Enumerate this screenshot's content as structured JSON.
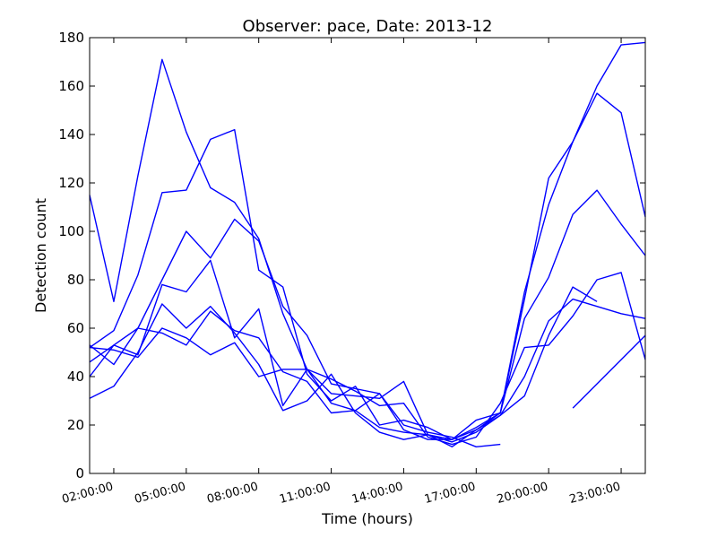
{
  "chart_data": {
    "type": "line",
    "title": "Observer: pace, Date: 2013-12",
    "xlabel": "Time (hours)",
    "ylabel": "Detection count",
    "ylim": [
      0,
      180
    ],
    "xlim": [
      "01:00",
      "24:00"
    ],
    "x_tick_labels": [
      "02:00:00",
      "05:00:00",
      "08:00:00",
      "11:00:00",
      "14:00:00",
      "17:00:00",
      "20:00:00",
      "23:00:00"
    ],
    "y_tick_labels": [
      "0",
      "20",
      "40",
      "60",
      "80",
      "100",
      "120",
      "140",
      "160",
      "180"
    ],
    "grid": false,
    "legend": "none",
    "line_color": "#0000ff",
    "x": [
      "01:00",
      "02:00",
      "03:00",
      "04:00",
      "05:00",
      "06:00",
      "07:00",
      "08:00",
      "09:00",
      "10:00",
      "11:00",
      "12:00",
      "13:00",
      "14:00",
      "15:00",
      "16:00",
      "17:00",
      "18:00",
      "19:00",
      "20:00",
      "21:00",
      "22:00",
      "23:00",
      "24:00"
    ],
    "series": [
      {
        "values": [
          115,
          71,
          123,
          171,
          141,
          118,
          112,
          97,
          66,
          43,
          33,
          32,
          31,
          38,
          16,
          14,
          22,
          25,
          72,
          122,
          137,
          160,
          177,
          178
        ]
      },
      {
        "values": [
          52,
          59,
          82,
          116,
          117,
          138,
          142,
          84,
          77,
          41,
          30,
          36,
          20,
          22,
          19,
          14,
          18,
          25,
          75,
          111,
          137,
          157,
          149,
          106
        ]
      },
      {
        "values": [
          46,
          53,
          60,
          80,
          100,
          89,
          105,
          96,
          69,
          57,
          37,
          35,
          33,
          18,
          14,
          14,
          19,
          25,
          64,
          81,
          107,
          117,
          103,
          90
        ]
      },
      {
        "values": [
          40,
          53,
          49,
          78,
          75,
          88,
          56,
          68,
          28,
          43,
          39,
          34,
          28,
          29,
          15,
          12,
          15,
          29,
          52,
          53,
          65,
          80,
          83,
          47
        ]
      },
      {
        "values": [
          31,
          36,
          50,
          70,
          60,
          69,
          58,
          45,
          26,
          30,
          41,
          25,
          17,
          14,
          16,
          13,
          17,
          24,
          40,
          63,
          72,
          69,
          66,
          64
        ]
      },
      {
        "values": [
          52,
          51,
          48,
          60,
          56,
          49,
          54,
          40,
          43,
          43,
          29,
          26,
          33,
          20,
          17,
          15,
          11,
          12,
          null,
          null,
          null,
          null,
          null,
          null
        ]
      },
      {
        "values": [
          53,
          45,
          60,
          58,
          53,
          67,
          59,
          56,
          42,
          38,
          25,
          26,
          19,
          17,
          16,
          11,
          18,
          24,
          32,
          57,
          77,
          71,
          null,
          null
        ]
      },
      {
        "values": [
          null,
          null,
          null,
          null,
          null,
          null,
          null,
          null,
          null,
          null,
          null,
          null,
          null,
          null,
          null,
          null,
          null,
          null,
          null,
          null,
          27,
          37,
          47,
          57
        ]
      }
    ]
  }
}
